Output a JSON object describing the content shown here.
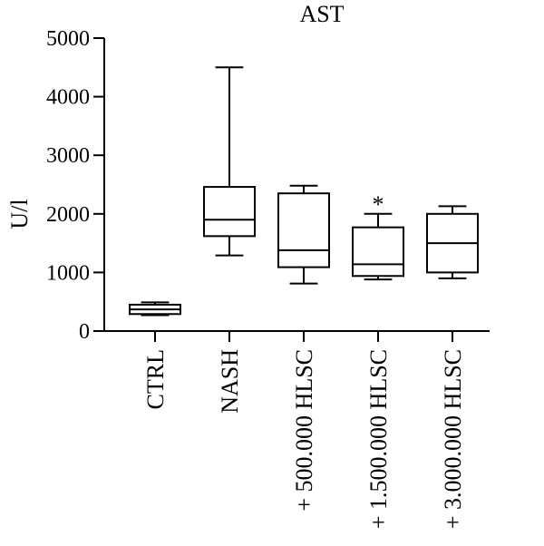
{
  "chart_data": {
    "type": "box",
    "title": "AST",
    "ylabel": "U/l",
    "xlabel": "",
    "ylim": [
      0,
      5000
    ],
    "yticks": [
      0,
      1000,
      2000,
      3000,
      4000,
      5000
    ],
    "categories": [
      "CTRL",
      "NASH",
      "+ 500.000 HLSC",
      "+ 1.500.000 HLSC",
      "+ 3.000.000 HLSC"
    ],
    "boxes": [
      {
        "category": "CTRL",
        "min": 270,
        "q1": 290,
        "median": 370,
        "q3": 450,
        "max": 490,
        "annotation": ""
      },
      {
        "category": "NASH",
        "min": 1290,
        "q1": 1620,
        "median": 1900,
        "q3": 2460,
        "max": 4500,
        "annotation": ""
      },
      {
        "category": "+ 500.000 HLSC",
        "min": 810,
        "q1": 1090,
        "median": 1380,
        "q3": 2350,
        "max": 2480,
        "annotation": ""
      },
      {
        "category": "+ 1.500.000 HLSC",
        "min": 880,
        "q1": 940,
        "median": 1140,
        "q3": 1770,
        "max": 2000,
        "annotation": "*"
      },
      {
        "category": "+ 3.000.000 HLSC",
        "min": 900,
        "q1": 1000,
        "median": 1500,
        "q3": 2000,
        "max": 2130,
        "annotation": ""
      }
    ],
    "grid": false,
    "legend": "none"
  }
}
